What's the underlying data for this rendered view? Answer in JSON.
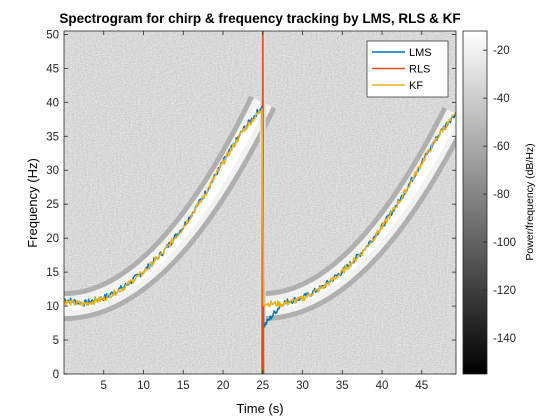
{
  "chart_data": {
    "type": "heatmap",
    "title": "Spectrogram for chirp & frequency tracking by LMS, RLS & KF",
    "xlabel": "Time (s)",
    "ylabel": "Frequency (Hz)",
    "xlim": [
      0,
      49.3
    ],
    "ylim": [
      0,
      50.5
    ],
    "x_ticks": [
      5,
      10,
      15,
      20,
      25,
      30,
      35,
      40,
      45
    ],
    "x_tick_labels": [
      "5",
      "10",
      "15",
      "20",
      "25",
      "30",
      "35",
      "40",
      "45"
    ],
    "y_ticks": [
      0,
      5,
      10,
      15,
      20,
      25,
      30,
      35,
      40,
      45,
      50
    ],
    "y_tick_labels": [
      "0",
      "5",
      "10",
      "15",
      "20",
      "25",
      "30",
      "35",
      "40",
      "45",
      "50"
    ],
    "colorbar": {
      "label": "Power/frequency (dB/Hz)",
      "range": [
        -155,
        -12
      ],
      "ticks": [
        -140,
        -120,
        -100,
        -80,
        -60,
        -40,
        -20
      ],
      "tick_labels": [
        "-140",
        "-120",
        "-100",
        "-80",
        "-60",
        "-40",
        "-20"
      ],
      "colormap": "gray"
    },
    "chirp": {
      "period_s": 25,
      "f_start_hz": 10,
      "f_end_hz": 40,
      "shape": "quadratic"
    },
    "legend": {
      "placement": "top-right",
      "entries": [
        "LMS",
        "RLS",
        "KF"
      ]
    },
    "series": [
      {
        "name": "LMS",
        "color": "#0072BD",
        "x": [
          0,
          2.5,
          5,
          7.5,
          10,
          12.5,
          15,
          17.5,
          20,
          22.5,
          24.9,
          25.1,
          27.5,
          30,
          32.5,
          35,
          37.5,
          40,
          42.5,
          45,
          47.5,
          49.3
        ],
        "values": [
          11.0,
          10.4,
          11.2,
          12.8,
          15.1,
          18.0,
          21.7,
          26.1,
          31.2,
          35.9,
          39.4,
          7.0,
          10.5,
          11.2,
          12.8,
          15.1,
          18.0,
          21.7,
          26.1,
          31.2,
          35.9,
          38.5
        ]
      },
      {
        "name": "RLS",
        "color": "#D95319",
        "x": [
          24.9,
          25.0,
          25.1
        ],
        "values": [
          0,
          50.5,
          0
        ]
      },
      {
        "name": "KF",
        "color": "#EDB120",
        "x": [
          0,
          2.5,
          5,
          7.5,
          10,
          12.5,
          15,
          17.5,
          20,
          22.5,
          24.9,
          25.1,
          27.5,
          30,
          32.5,
          35,
          37.5,
          40,
          42.5,
          45,
          47.5,
          49.3
        ],
        "values": [
          10.6,
          10.3,
          11.1,
          12.7,
          15.0,
          17.9,
          21.6,
          26.0,
          31.1,
          35.8,
          39.0,
          10.4,
          10.3,
          11.1,
          12.7,
          15.0,
          17.9,
          21.6,
          26.0,
          31.1,
          35.8,
          38.3
        ]
      }
    ]
  }
}
